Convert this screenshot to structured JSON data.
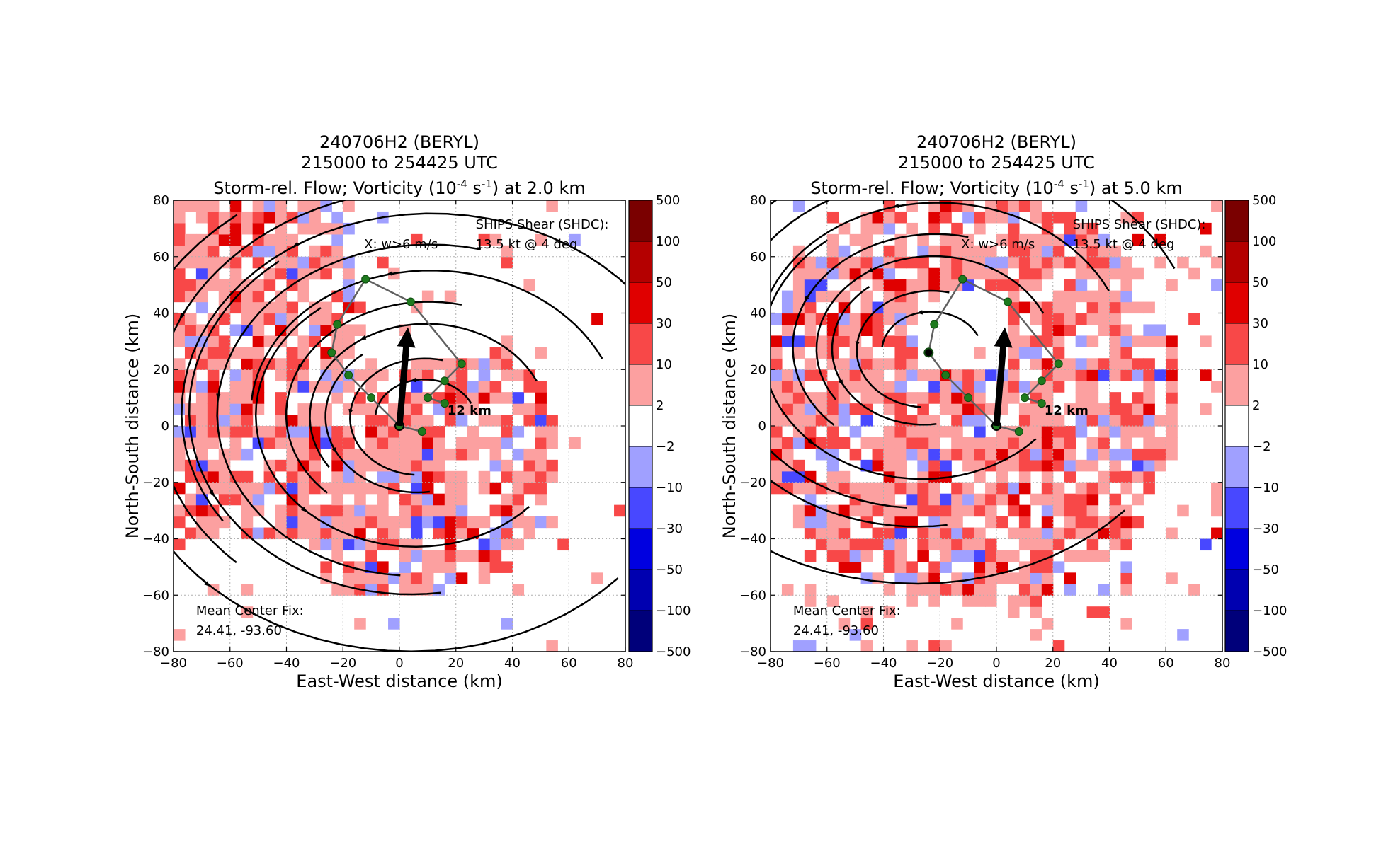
{
  "colors": {
    "positive": [
      "#fca0a0",
      "#f84848",
      "#e00000",
      "#b40000",
      "#7a0000"
    ],
    "negative": [
      "#a0a0ff",
      "#4848ff",
      "#0000e0",
      "#0000b0",
      "#00007a"
    ],
    "streamline": "#000000",
    "track": "#606060",
    "track_point": "#1e7a1e",
    "grid": "#b0b0b0"
  },
  "chart_data": [
    {
      "type": "heatmap",
      "title_lines": [
        "240706H2 (BERYL)",
        "215000 to 254425 UTC",
        "Storm-rel. Flow; Vorticity (10",
        "-4",
        " s",
        "-1",
        ") at 2.0 km"
      ],
      "xlabel": "East-West distance (km)",
      "ylabel": "North-South distance (km)",
      "xlim": [
        -80,
        80
      ],
      "ylim": [
        -80,
        80
      ],
      "xticks": [
        "−80",
        "−60",
        "−40",
        "−20",
        "0",
        "20",
        "40",
        "60",
        "80"
      ],
      "yticks": [
        "80",
        "60",
        "40",
        "20",
        "0",
        "−20",
        "−40",
        "−60",
        "−80"
      ],
      "grid": true,
      "colorbar": {
        "levels": [
          "500",
          "100",
          "50",
          "30",
          "10",
          "2",
          "−2",
          "−10",
          "−30",
          "−50",
          "−100",
          "−500"
        ]
      },
      "annotations": {
        "updraft_note": "X: w>6 m/s",
        "shear_line1": "SHIPS Shear (SHDC):",
        "shear_line2": "13.5 kt @ 4 deg",
        "fix_line1": "Mean Center Fix:",
        "fix_line2": "24.41, -93.60",
        "ring_label": "12 km"
      },
      "shear_vector": {
        "from": [
          0,
          0
        ],
        "to": [
          3,
          35
        ]
      },
      "center_track": [
        [
          8,
          -2
        ],
        [
          0,
          0
        ],
        [
          -10,
          10
        ],
        [
          -18,
          18
        ],
        [
          -24,
          26
        ],
        [
          -22,
          36
        ],
        [
          -12,
          52
        ],
        [
          4,
          44
        ],
        [
          22,
          22
        ],
        [
          16,
          16
        ],
        [
          10,
          10
        ],
        [
          16,
          8
        ]
      ],
      "vortex_center": [
        8,
        2
      ]
    },
    {
      "type": "heatmap",
      "title_lines": [
        "240706H2 (BERYL)",
        "215000 to 254425 UTC",
        "Storm-rel. Flow; Vorticity (10",
        "-4",
        " s",
        "-1",
        ") at 5.0 km"
      ],
      "xlabel": "East-West distance (km)",
      "ylabel": "North-South distance (km)",
      "xlim": [
        -80,
        80
      ],
      "ylim": [
        -80,
        80
      ],
      "xticks": [
        "−80",
        "−60",
        "−40",
        "−20",
        "0",
        "20",
        "40",
        "60",
        "80"
      ],
      "yticks": [
        "80",
        "60",
        "40",
        "20",
        "0",
        "−20",
        "−40",
        "−60",
        "−80"
      ],
      "grid": true,
      "colorbar": {
        "levels": [
          "500",
          "100",
          "50",
          "30",
          "10",
          "2",
          "−2",
          "−10",
          "−30",
          "−50",
          "−100",
          "−500"
        ]
      },
      "annotations": {
        "updraft_note": "X: w>6 m/s",
        "shear_line1": "SHIPS Shear (SHDC):",
        "shear_line2": "13.5 kt @ 4 deg",
        "fix_line1": "Mean Center Fix:",
        "fix_line2": "24.41, -93.60",
        "ring_label": "12 km"
      },
      "shear_vector": {
        "from": [
          0,
          0
        ],
        "to": [
          3,
          35
        ]
      },
      "center_track": [
        [
          8,
          -2
        ],
        [
          0,
          0
        ],
        [
          -10,
          10
        ],
        [
          -18,
          18
        ],
        [
          -24,
          26
        ],
        [
          -22,
          36
        ],
        [
          -12,
          52
        ],
        [
          4,
          44
        ],
        [
          22,
          22
        ],
        [
          16,
          16
        ],
        [
          10,
          10
        ],
        [
          16,
          8
        ]
      ],
      "vortex_center": [
        -24,
        26
      ]
    }
  ]
}
